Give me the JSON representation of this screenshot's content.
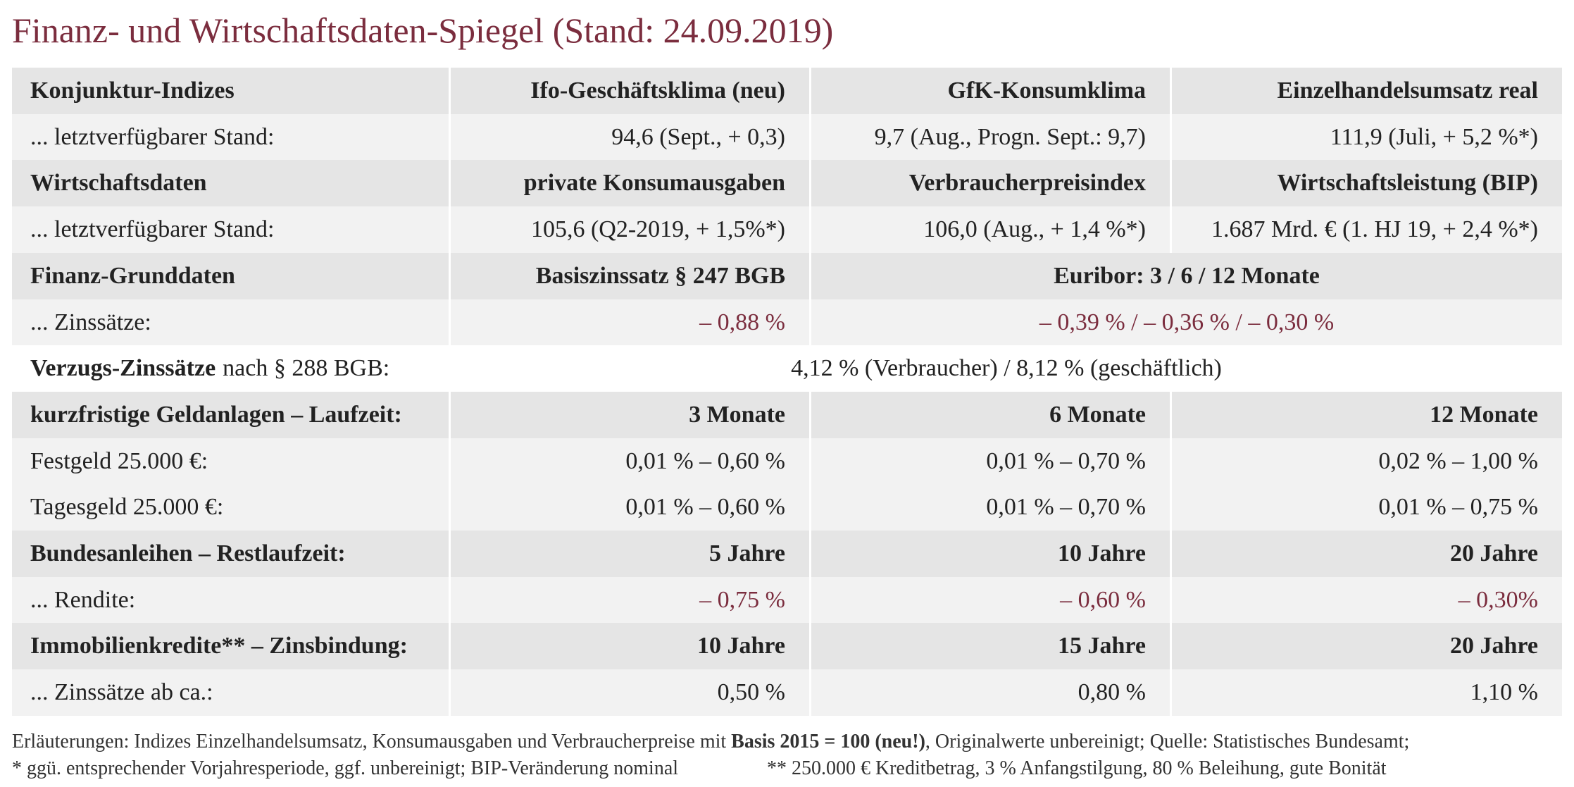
{
  "header": {
    "title": "Finanz- und Wirtschaftsdaten-Spiegel (Stand: 24.09.2019)"
  },
  "table": {
    "rows": [
      [
        "Konjunktur-Indizes",
        "Ifo-Geschäftsklima (neu)",
        "GfK-Konsumklima",
        "Einzelhandelsumsatz real"
      ],
      [
        "... letztverfügbarer Stand:",
        "94,6 (Sept., + 0,3)",
        "9,7 (Aug., Progn. Sept.: 9,7)",
        "111,9 (Juli, + 5,2 %*)"
      ],
      [
        "Wirtschaftsdaten",
        "private Konsumausgaben",
        "Verbraucherpreisindex",
        "Wirtschaftsleistung (BIP)"
      ],
      [
        "... letztverfügbarer Stand:",
        "105,6 (Q2-2019, + 1,5%*)",
        "106,0 (Aug., + 1,4 %*)",
        "1.687 Mrd. € (1. HJ 19, + 2,4 %*)"
      ],
      [
        "Finanz-Grunddaten",
        "Basiszinssatz § 247 BGB",
        "Euribor: 3 / 6 / 12 Monate"
      ],
      [
        "... Zinssätze:",
        "– 0,88 %",
        "– 0,39 % / – 0,36 % / – 0,30 %"
      ],
      [
        "Verzugs-Zinssätze",
        "nach § 288 BGB:",
        "4,12 % (Verbraucher) / 8,12 % (geschäftlich)"
      ],
      [
        "kurzfristige Geldanlagen – Laufzeit:",
        "3 Monate",
        "6 Monate",
        "12 Monate"
      ],
      [
        "Festgeld 25.000 €:",
        "0,01 % – 0,60 %",
        "0,01 % – 0,70 %",
        "0,02 % – 1,00 %"
      ],
      [
        "Tagesgeld 25.000 €:",
        "0,01 % – 0,60 %",
        "0,01 % – 0,70 %",
        "0,01 % – 0,75 %"
      ],
      [
        "Bundesanleihen – Restlaufzeit:",
        "5 Jahre",
        "10 Jahre",
        "20 Jahre"
      ],
      [
        "... Rendite:",
        "– 0,75 %",
        "– 0,60 %",
        "– 0,30%"
      ],
      [
        "Immobilienkredite** – Zinsbindung:",
        "10 Jahre",
        "15 Jahre",
        "20 Jahre"
      ],
      [
        "... Zinssätze ab ca.:",
        "0,50 %",
        "0,80 %",
        "1,10 %"
      ]
    ]
  },
  "notes": [
    [
      "Erläuterungen: Indizes Einzelhandelsumsatz, Konsumausgaben und Verbraucherpreise mit ",
      "Basis 2015 = 100 (neu!)",
      ", Originalwerte unbereinigt; Quelle: Statistisches Bundesamt;"
    ],
    [
      "* ggü. entsprechender Vorjahresperiode, ggf. unbereinigt; BIP-Veränderung nominal",
      "** 250.000 € Kreditbetrag, 3 % Anfangstilgung, 80 % Beleihung, gute Bonität"
    ]
  ]
}
